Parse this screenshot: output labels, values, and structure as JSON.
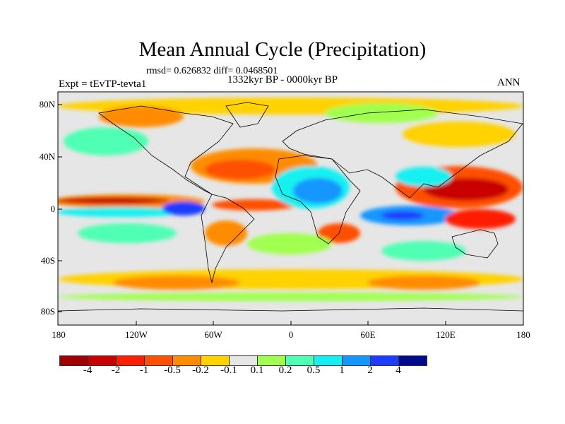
{
  "title": "Mean Annual Cycle (Precipitation)",
  "stats": "rmsd= 0.626832 diff= 0.0468501",
  "period": "1332kyr BP - 0000kyr BP",
  "experiment": "Expt = tEvTP-tevta1",
  "season": "ANN",
  "lat_labels": [
    "80N",
    "40N",
    "0",
    "40S",
    "80S"
  ],
  "lon_labels": [
    "180",
    "120W",
    "60W",
    "0",
    "60E",
    "120E",
    "180"
  ],
  "colorbar": {
    "colors": [
      "#a00000",
      "#c80000",
      "#ff1e00",
      "#ff5000",
      "#ff8c00",
      "#ffd200",
      "#e6e6e6",
      "#a0ff50",
      "#50ffb4",
      "#14f0f0",
      "#1496ff",
      "#1e3cff",
      "#000a8c"
    ],
    "labels": [
      "-4",
      "-2",
      "-1",
      "-0.5",
      "-0.2",
      "-0.1",
      "0.1",
      "0.2",
      "0.5",
      "1",
      "2",
      "4"
    ]
  }
}
